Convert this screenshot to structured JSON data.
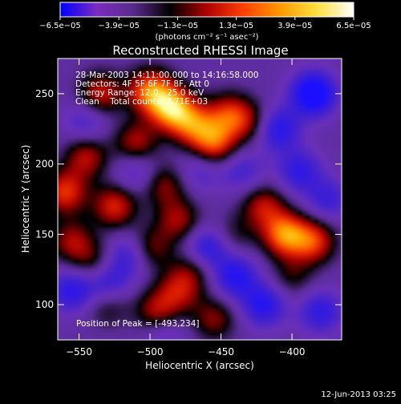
{
  "chart_data": {
    "type": "heatmap",
    "title": "Reconstructed RHESSI Image",
    "xlabel": "Heliocentric X (arcsec)",
    "ylabel": "Heliocentric Y (arcsec)",
    "xlim": [
      -565,
      -365
    ],
    "ylim": [
      75,
      275
    ],
    "xticks": [
      "-550",
      "-500",
      "-450",
      "-400"
    ],
    "xtick_values": [
      -550,
      -500,
      -450,
      -400
    ],
    "yticks": [
      "100",
      "150",
      "200",
      "250"
    ],
    "ytick_values": [
      100,
      150,
      200,
      250
    ],
    "colorbar": {
      "min": -6.5e-05,
      "max": 6.5e-05,
      "tick_labels": [
        "-6.5e-05",
        "-3.9e-05",
        "-1.3e-05",
        "1.3e-05",
        "3.9e-05",
        "6.5e-05"
      ],
      "unit_label": "(photons cm⁻² s⁻¹ asec⁻²)",
      "colors": [
        "#0000ff",
        "#7a2cc0",
        "#5a2a8a",
        "#000000",
        "#b00000",
        "#ff4000",
        "#ff9a00",
        "#ffe040",
        "#ffffff"
      ]
    },
    "annotations": [
      "28-Mar-2003 14:11:00.000 to 14:16:58.000",
      "Detectors: 4F 5F 6F 7F 8F, Att 0",
      "Energy Range: 12.0 - 25.0 keV",
      "Clean    Total counts: 2.71E+03"
    ],
    "peak_label": "Position of Peak = [-493,234]",
    "peak_position": [
      -493,
      234
    ],
    "blobs": [
      {
        "x": -485,
        "y": 240,
        "v": 1.0
      },
      {
        "x": -500,
        "y": 252,
        "v": 0.85
      },
      {
        "x": -470,
        "y": 228,
        "v": 0.7
      },
      {
        "x": -455,
        "y": 215,
        "v": 0.75
      },
      {
        "x": -445,
        "y": 235,
        "v": 0.6
      },
      {
        "x": -535,
        "y": 250,
        "v": 0.6
      },
      {
        "x": -510,
        "y": 215,
        "v": 0.55
      },
      {
        "x": -545,
        "y": 205,
        "v": 0.55
      },
      {
        "x": -560,
        "y": 180,
        "v": 0.7
      },
      {
        "x": -525,
        "y": 170,
        "v": 0.65
      },
      {
        "x": -490,
        "y": 185,
        "v": 0.45
      },
      {
        "x": -430,
        "y": 230,
        "v": 0.4
      },
      {
        "x": -480,
        "y": 160,
        "v": 0.5
      },
      {
        "x": -420,
        "y": 170,
        "v": 0.55
      },
      {
        "x": -405,
        "y": 150,
        "v": 0.9
      },
      {
        "x": -385,
        "y": 145,
        "v": 0.7
      },
      {
        "x": -555,
        "y": 145,
        "v": 0.5
      },
      {
        "x": -540,
        "y": 130,
        "v": 0.35
      },
      {
        "x": -500,
        "y": 140,
        "v": 0.45
      },
      {
        "x": -470,
        "y": 125,
        "v": 0.35
      },
      {
        "x": -495,
        "y": 95,
        "v": 0.55
      },
      {
        "x": -480,
        "y": 110,
        "v": 0.5
      },
      {
        "x": -455,
        "y": 90,
        "v": 0.45
      },
      {
        "x": -530,
        "y": 100,
        "v": 0.35
      },
      {
        "x": -400,
        "y": 120,
        "v": 0.3
      },
      {
        "x": -440,
        "y": 150,
        "v": 0.25
      },
      {
        "x": -410,
        "y": 225,
        "v": -0.6
      },
      {
        "x": -385,
        "y": 250,
        "v": -0.9
      },
      {
        "x": -395,
        "y": 195,
        "v": -0.5
      },
      {
        "x": -440,
        "y": 120,
        "v": -0.6
      },
      {
        "x": -460,
        "y": 140,
        "v": -0.55
      },
      {
        "x": -530,
        "y": 115,
        "v": -0.5
      },
      {
        "x": -555,
        "y": 110,
        "v": -0.55
      },
      {
        "x": -515,
        "y": 135,
        "v": -0.45
      },
      {
        "x": -420,
        "y": 100,
        "v": -0.6
      },
      {
        "x": -380,
        "y": 95,
        "v": -0.5
      },
      {
        "x": -545,
        "y": 230,
        "v": -0.35
      },
      {
        "x": -510,
        "y": 195,
        "v": -0.35
      },
      {
        "x": -465,
        "y": 195,
        "v": -0.3
      },
      {
        "x": -435,
        "y": 195,
        "v": -0.35
      },
      {
        "x": -375,
        "y": 175,
        "v": -0.4
      },
      {
        "x": -490,
        "y": 80,
        "v": -0.3
      }
    ]
  },
  "footer": {
    "date_stamp": "12-Jun-2013 03:25"
  }
}
